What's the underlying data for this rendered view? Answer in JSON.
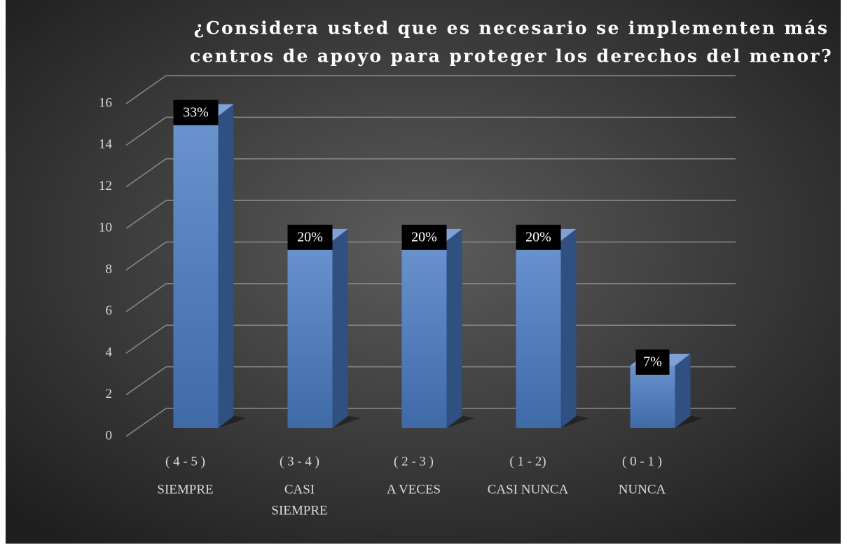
{
  "chart_data": {
    "type": "bar3d",
    "title": [
      "¿Considera usted que es necesario se implementen más",
      "centros de apoyo para proteger los derechos del menor?"
    ],
    "categories": [
      [
        "( 4 - 5 )",
        "SIEMPRE"
      ],
      [
        "( 3 - 4 )",
        "CASI",
        "SIEMPRE"
      ],
      [
        "( 2 - 3 )",
        "A VECES"
      ],
      [
        "( 1 - 2)",
        "CASI NUNCA"
      ],
      [
        "( 0 - 1 )",
        "NUNCA"
      ]
    ],
    "values": [
      15,
      9,
      9,
      9,
      3
    ],
    "data_labels": [
      {
        "value": 33,
        "label": "33%"
      },
      {
        "value": 20,
        "label": "20%"
      },
      {
        "value": 20,
        "label": "20%"
      },
      {
        "value": 20,
        "label": "20%"
      },
      {
        "value": 7,
        "label": "7%"
      }
    ],
    "color": "#4f81bd",
    "ylim": [
      0,
      16
    ],
    "yticks": [
      0,
      2,
      4,
      6,
      8,
      10,
      12,
      14,
      16
    ],
    "grid": true
  }
}
